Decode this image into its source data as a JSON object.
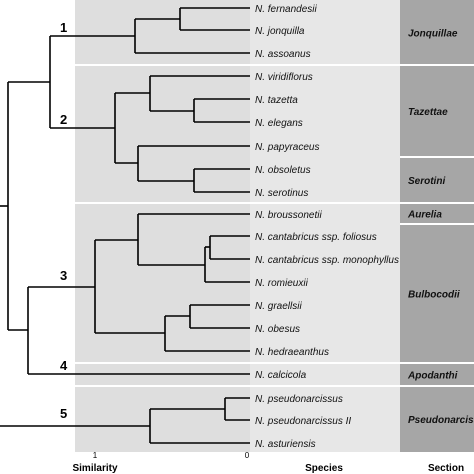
{
  "clusters": [
    "1",
    "2",
    "3",
    "4",
    "5"
  ],
  "species": [
    "N. fernandesii",
    "N. jonquilla",
    "N. assoanus",
    "N. viridiflorus",
    "N. tazetta",
    "N. elegans",
    "N. papyraceus",
    "N. obsoletus",
    "N. serotinus",
    "N. broussonetii",
    "N. cantabricus ssp. foliosus",
    "N. cantabricus ssp. monophyllus",
    "N. romieuxii",
    "N. graellsii",
    "N. obesus",
    "N. hedraeanthus",
    "N. calcicola",
    "N. pseudonarcissus",
    "N. pseudonarcissus II",
    "N. asturiensis"
  ],
  "sections": [
    {
      "label": "Jonquillae",
      "first": 0,
      "last": 2
    },
    {
      "label": "Tazettae",
      "first": 3,
      "last": 6
    },
    {
      "label": "Serotini",
      "first": 7,
      "last": 8
    },
    {
      "label": "Aurelia",
      "first": 9,
      "last": 9
    },
    {
      "label": "Bulbocodii",
      "first": 10,
      "last": 15
    },
    {
      "label": "Apodanthi",
      "first": 16,
      "last": 16
    },
    {
      "label": "Pseudonarcissi",
      "first": 17,
      "last": 19
    }
  ],
  "axis": {
    "tick_left": "1",
    "tick_right": "0",
    "label_similarity": "Similarity",
    "label_species": "Species",
    "label_section": "Section"
  },
  "colors": {
    "band": "#dedede",
    "band_alt": "#f2f2f2",
    "section": "#a6a6a6",
    "separator": "#ffffff",
    "line": "#000000"
  }
}
